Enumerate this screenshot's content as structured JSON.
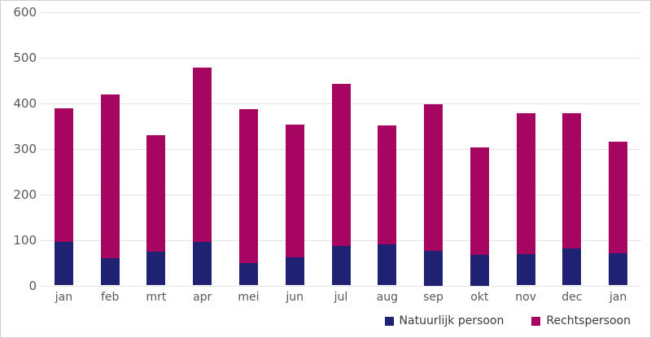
{
  "chart_data": {
    "type": "bar",
    "stacked": true,
    "title": "",
    "xlabel": "",
    "ylabel": "",
    "categories": [
      "jan",
      "feb",
      "mrt",
      "apr",
      "mei",
      "jun",
      "jul",
      "aug",
      "sep",
      "okt",
      "nov",
      "dec",
      "jan"
    ],
    "series": [
      {
        "name": "Natuurlijk persoon",
        "color": "#1F2272",
        "values": [
          95,
          60,
          74,
          95,
          49,
          62,
          86,
          90,
          76,
          67,
          69,
          82,
          71
        ]
      },
      {
        "name": "Rechtspersoon",
        "color": "#A60662",
        "values": [
          294,
          359,
          256,
          384,
          339,
          292,
          356,
          262,
          322,
          237,
          309,
          297,
          245
        ]
      }
    ],
    "totals": [
      389,
      419,
      330,
      479,
      388,
      354,
      442,
      352,
      398,
      304,
      378,
      379,
      316
    ],
    "ylim": [
      0,
      600
    ],
    "y_ticks": [
      0,
      100,
      200,
      300,
      400,
      500,
      600
    ],
    "grid": true,
    "legend_position": "bottom-right"
  },
  "style": {
    "grid_color": "#e4e4e4",
    "tick_label_color": "#595959",
    "legend_text_color": "#3a3a3a",
    "frame_border_color": "#cfcfcf"
  }
}
